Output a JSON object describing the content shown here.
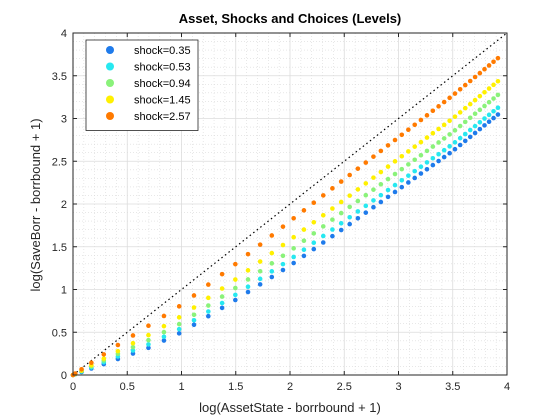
{
  "chart_data": {
    "type": "scatter",
    "title": "Asset, Shocks and Choices (Levels)",
    "xlabel": "log(AssetState - borrbound + 1)",
    "ylabel": "log(SaveBorr - borrbound + 1)",
    "xlim": [
      0,
      4
    ],
    "ylim": [
      0,
      4
    ],
    "xticks": [
      "0",
      "0.5",
      "1",
      "1.5",
      "2",
      "2.5",
      "3",
      "3.5",
      "4"
    ],
    "yticks": [
      "0",
      "0.5",
      "1",
      "1.5",
      "2",
      "2.5",
      "3",
      "3.5",
      "4"
    ],
    "grid": true,
    "grid_minor": true,
    "legend_position": "top-left",
    "reference_line": {
      "style": "dotted",
      "color": "#000000",
      "from": [
        0,
        0
      ],
      "to": [
        4,
        4
      ]
    },
    "series": [
      {
        "name": "shock=0.35",
        "color": "#1F7BEB",
        "x": [
          0,
          0.4,
          0.7,
          1.0,
          1.5,
          2.0,
          2.5,
          3.0,
          3.5,
          3.93
        ],
        "y": [
          0,
          0.18,
          0.32,
          0.5,
          0.88,
          1.28,
          1.72,
          2.17,
          2.62,
          3.06
        ]
      },
      {
        "name": "shock=0.53",
        "color": "#27E8F0",
        "x": [
          0,
          0.4,
          0.7,
          1.0,
          1.5,
          2.0,
          2.5,
          3.0,
          3.5,
          3.93
        ],
        "y": [
          0,
          0.21,
          0.36,
          0.55,
          0.94,
          1.35,
          1.8,
          2.25,
          2.7,
          3.14
        ]
      },
      {
        "name": "shock=0.94",
        "color": "#8AF27A",
        "x": [
          0,
          0.4,
          0.7,
          1.0,
          1.5,
          2.0,
          2.5,
          3.0,
          3.5,
          3.93
        ],
        "y": [
          0,
          0.24,
          0.41,
          0.61,
          1.02,
          1.45,
          1.92,
          2.38,
          2.84,
          3.29
        ]
      },
      {
        "name": "shock=1.45",
        "color": "#FFF000",
        "x": [
          0,
          0.4,
          0.7,
          1.0,
          1.5,
          2.0,
          2.5,
          3.0,
          3.5,
          3.93
        ],
        "y": [
          0,
          0.27,
          0.47,
          0.69,
          1.12,
          1.58,
          2.05,
          2.53,
          3.0,
          3.45
        ]
      },
      {
        "name": "shock=2.57",
        "color": "#FF7A00",
        "x": [
          0,
          0.4,
          0.7,
          1.0,
          1.5,
          2.0,
          2.5,
          3.0,
          3.5,
          3.93
        ],
        "y": [
          0,
          0.34,
          0.58,
          0.82,
          1.3,
          1.8,
          2.29,
          2.78,
          3.27,
          3.72
        ]
      }
    ]
  }
}
